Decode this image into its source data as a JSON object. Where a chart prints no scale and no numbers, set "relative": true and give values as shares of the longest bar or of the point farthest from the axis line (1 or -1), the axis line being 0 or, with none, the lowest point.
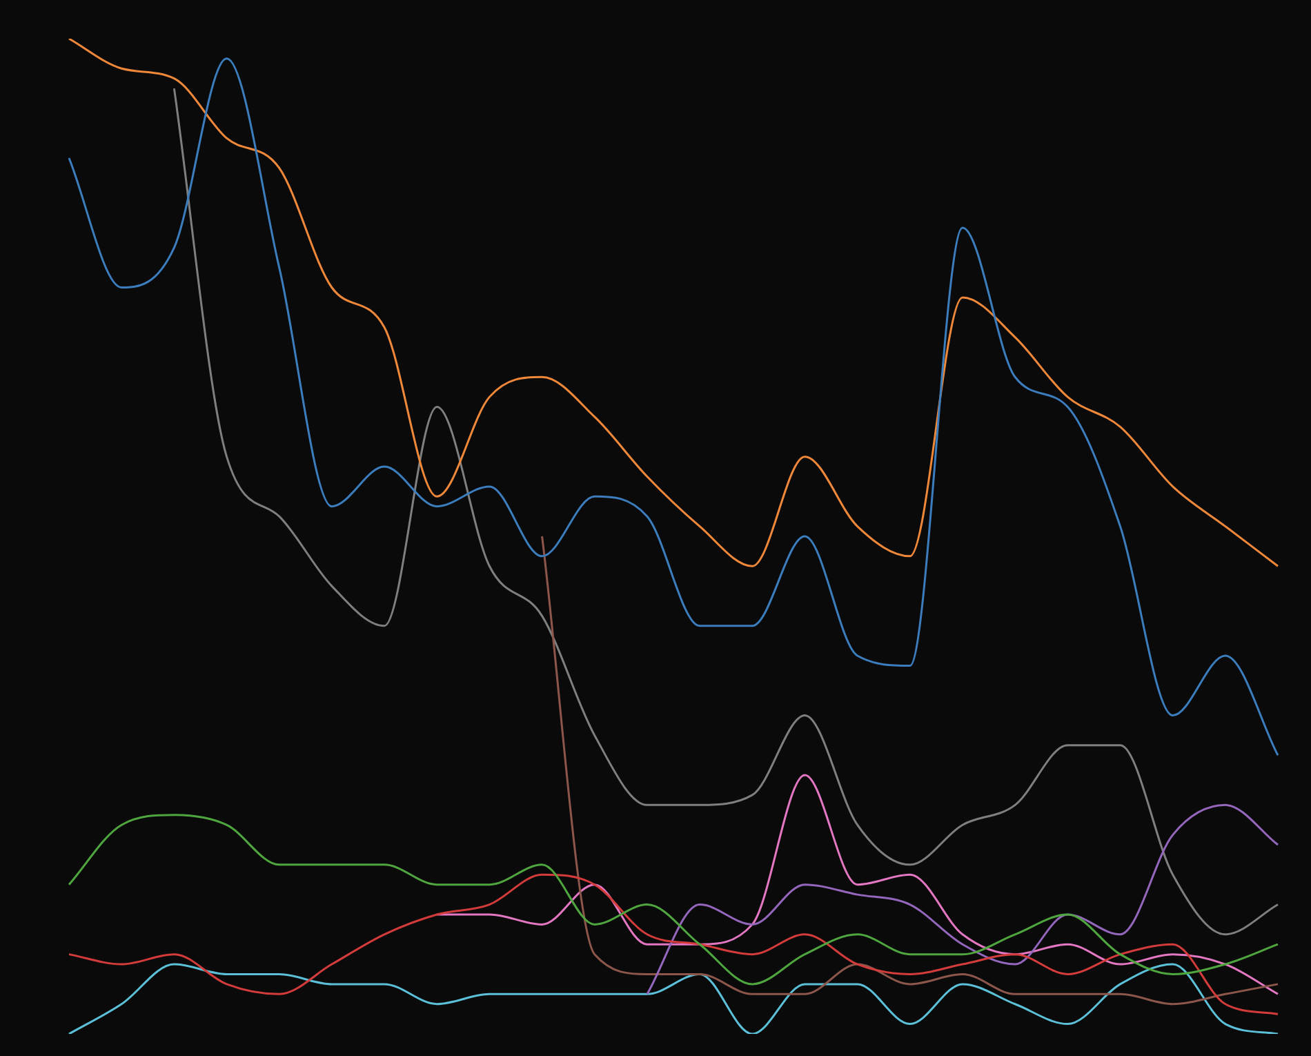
{
  "chart_data": {
    "type": "line",
    "relative": true,
    "categories": [
      null,
      null,
      null,
      null,
      null,
      null,
      null,
      null,
      null,
      null,
      null,
      null,
      null,
      null,
      null,
      null,
      null,
      null,
      null,
      null,
      null,
      null,
      null,
      null
    ],
    "series": [
      {
        "color": "#3b7dbd",
        "values": [
          0.88,
          0.75,
          0.79,
          0.98,
          0.77,
          0.53,
          0.57,
          0.53,
          0.55,
          0.48,
          0.54,
          0.52,
          0.41,
          0.41,
          0.5,
          0.38,
          0.37,
          0.81,
          0.66,
          0.63,
          0.51,
          0.32,
          0.38,
          0.28
        ]
      },
      {
        "color": "#f0883a",
        "values": [
          1,
          0.97,
          0.96,
          0.9,
          0.87,
          0.75,
          0.71,
          0.54,
          0.64,
          0.66,
          0.62,
          0.56,
          0.51,
          0.47,
          0.58,
          0.51,
          0.48,
          0.74,
          0.7,
          0.64,
          0.61,
          0.55,
          0.51,
          0.47
        ]
      },
      {
        "color": "#4fa63f",
        "values": [
          0.15,
          0.21,
          0.22,
          0.21,
          0.17,
          0.17,
          0.17,
          0.15,
          0.15,
          0.17,
          0.11,
          0.13,
          0.09,
          0.05,
          0.08,
          0.1,
          0.08,
          0.08,
          0.1,
          0.12,
          0.08,
          0.06,
          0.07,
          0.09
        ]
      },
      {
        "color": "#d43c3c",
        "values": [
          0.08,
          0.07,
          0.08,
          0.05,
          0.04,
          0.07,
          0.1,
          0.12,
          0.13,
          0.16,
          0.15,
          0.1,
          0.09,
          0.08,
          0.1,
          0.07,
          0.06,
          0.07,
          0.08,
          0.06,
          0.08,
          0.09,
          0.03,
          0.02
        ]
      },
      {
        "color": "#9467bd",
        "values": [
          null,
          null,
          null,
          null,
          null,
          null,
          null,
          null,
          null,
          null,
          null,
          0.04,
          0.13,
          0.11,
          0.15,
          0.14,
          0.13,
          0.09,
          0.07,
          0.12,
          0.1,
          0.2,
          0.23,
          0.19
        ]
      },
      {
        "color": "#8c564b",
        "values": [
          null,
          null,
          null,
          null,
          null,
          null,
          null,
          null,
          null,
          0.5,
          0.08,
          0.06,
          0.06,
          0.04,
          0.04,
          0.07,
          0.05,
          0.06,
          0.04,
          0.04,
          0.04,
          0.03,
          0.04,
          0.05
        ]
      },
      {
        "color": "#e377c2",
        "values": [
          null,
          null,
          null,
          null,
          null,
          null,
          null,
          0.12,
          0.12,
          0.11,
          0.15,
          0.09,
          0.09,
          0.11,
          0.26,
          0.15,
          0.16,
          0.1,
          0.08,
          0.09,
          0.07,
          0.08,
          0.07,
          0.04
        ]
      },
      {
        "color": "#7f7f7f",
        "values": [
          null,
          null,
          0.95,
          0.58,
          0.52,
          0.45,
          0.41,
          0.63,
          0.47,
          0.42,
          0.3,
          0.23,
          0.23,
          0.24,
          0.32,
          0.21,
          0.17,
          0.21,
          0.23,
          0.29,
          0.29,
          0.16,
          0.1,
          0.13
        ]
      },
      {
        "color": "#5bc0d8",
        "values": [
          0,
          0.03,
          0.07,
          0.06,
          0.06,
          0.05,
          0.05,
          0.03,
          0.04,
          0.04,
          0.04,
          0.04,
          0.06,
          0,
          0.05,
          0.05,
          0.01,
          0.05,
          0.03,
          0.01,
          0.05,
          0.07,
          0.01,
          0
        ]
      }
    ]
  }
}
